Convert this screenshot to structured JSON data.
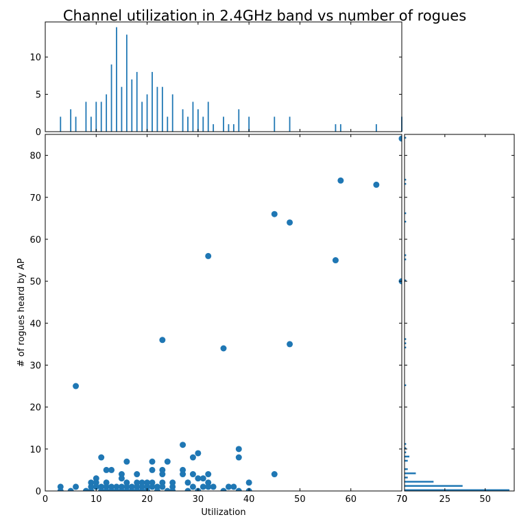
{
  "chart_data": [
    {
      "type": "scatter",
      "title": "Channel utilization in 2.4GHz band vs number of rogues",
      "x_label": "Utilization",
      "y_label": "# of rogues heard by AP",
      "color": "#1f77b4",
      "x": [
        3,
        3,
        5,
        6,
        6,
        8,
        9,
        9,
        9,
        10,
        10,
        10,
        11,
        11,
        11,
        12,
        12,
        12,
        12,
        13,
        13,
        13,
        14,
        14,
        15,
        15,
        15,
        15,
        16,
        16,
        16,
        16,
        17,
        17,
        18,
        18,
        18,
        18,
        19,
        19,
        19,
        20,
        20,
        20,
        21,
        21,
        21,
        21,
        22,
        22,
        23,
        23,
        23,
        23,
        23,
        24,
        24,
        25,
        25,
        25,
        27,
        27,
        27,
        28,
        28,
        29,
        29,
        29,
        30,
        30,
        30,
        31,
        31,
        32,
        32,
        32,
        32,
        33,
        35,
        35,
        36,
        37,
        38,
        38,
        38,
        40,
        40,
        45,
        45,
        48,
        48,
        57,
        58,
        65,
        70,
        70
      ],
      "values": [
        1,
        0,
        0,
        1,
        25,
        0,
        2,
        1,
        0,
        3,
        1,
        2,
        8,
        1,
        0,
        5,
        2,
        1,
        0,
        5,
        1,
        0,
        1,
        0,
        4,
        3,
        1,
        0,
        7,
        2,
        1,
        0,
        0,
        1,
        4,
        2,
        1,
        0,
        2,
        1,
        0,
        2,
        1,
        0,
        7,
        5,
        2,
        1,
        1,
        0,
        36,
        5,
        4,
        2,
        1,
        7,
        0,
        2,
        1,
        0,
        11,
        5,
        4,
        2,
        0,
        8,
        4,
        1,
        9,
        3,
        0,
        3,
        1,
        56,
        4,
        2,
        1,
        1,
        34,
        0,
        1,
        1,
        10,
        8,
        0,
        2,
        0,
        66,
        4,
        64,
        35,
        55,
        74,
        73,
        50,
        84
      ],
      "xlim": [
        0,
        70
      ],
      "ylim": [
        0,
        85
      ],
      "xticks": [
        0,
        10,
        20,
        30,
        40,
        50,
        60,
        70
      ],
      "yticks": [
        0,
        10,
        20,
        30,
        40,
        50,
        60,
        70,
        80
      ]
    },
    {
      "type": "bar",
      "color": "#1f77b4",
      "x": [
        3,
        5,
        6,
        8,
        9,
        10,
        11,
        12,
        13,
        14,
        15,
        16,
        17,
        18,
        19,
        20,
        21,
        22,
        23,
        24,
        25,
        27,
        28,
        29,
        30,
        31,
        32,
        33,
        35,
        36,
        37,
        38,
        40,
        45,
        48,
        57,
        58,
        65,
        70
      ],
      "values": [
        2,
        3,
        2,
        4,
        2,
        4,
        4,
        5,
        9,
        14,
        6,
        13,
        7,
        8,
        4,
        5,
        8,
        6,
        6,
        2,
        5,
        3,
        2,
        4,
        3,
        2,
        4,
        1,
        2,
        1,
        1,
        3,
        2,
        2,
        2,
        1,
        1,
        1,
        2
      ],
      "xlim": [
        0,
        70
      ],
      "ylim": [
        0,
        14.7
      ],
      "xticks": [
        0,
        10,
        20,
        30,
        40,
        50,
        60,
        70
      ],
      "yticks": [
        0,
        5,
        10
      ]
    },
    {
      "type": "barh",
      "color": "#1f77b4",
      "y": [
        0,
        1,
        2,
        3,
        4,
        5,
        7,
        8,
        9,
        10,
        11,
        25,
        34,
        35,
        36,
        50,
        55,
        56,
        64,
        66,
        73,
        74,
        84
      ],
      "values": [
        65,
        36,
        18,
        2,
        7,
        2,
        2,
        3,
        1,
        1,
        1,
        1,
        1,
        1,
        1,
        1,
        1,
        1,
        1,
        1,
        1,
        1,
        1
      ],
      "xlim": [
        0,
        68
      ],
      "ylim": [
        0,
        85
      ],
      "xticks": [
        0,
        25,
        50
      ],
      "yticks": [
        0,
        10,
        20,
        30,
        40,
        50,
        60,
        70,
        80
      ]
    }
  ]
}
